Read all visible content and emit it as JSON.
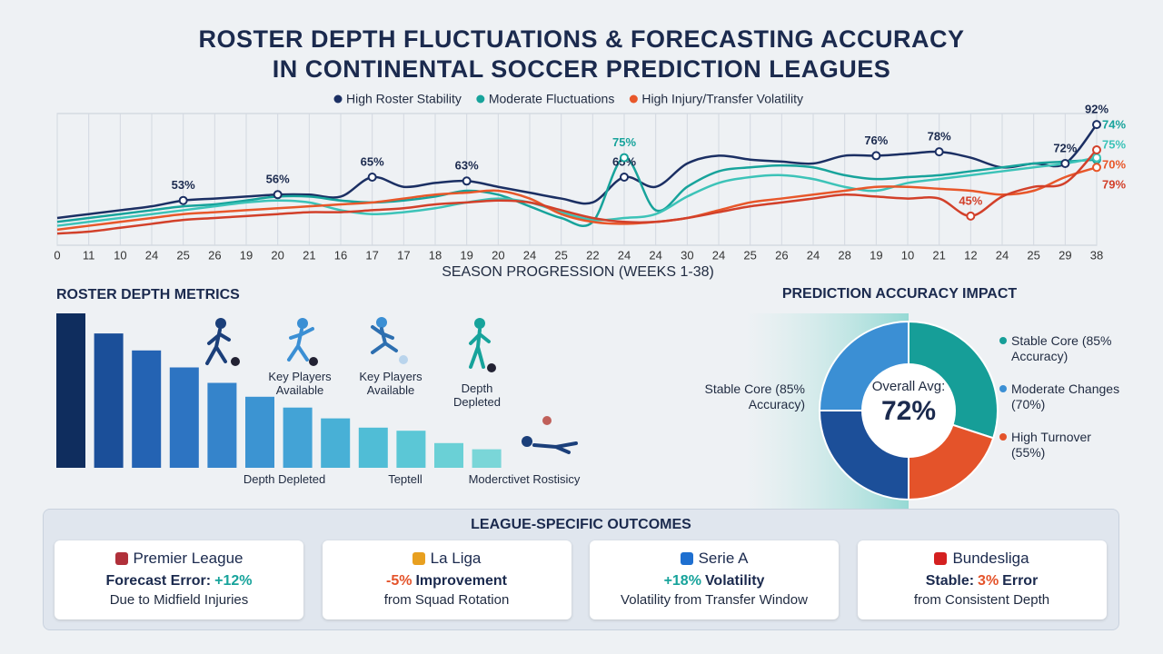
{
  "title": [
    "ROSTER DEPTH FLUCTUATIONS & FORECASTING ACCURACY",
    "IN CONTINENTAL SOCCER PREDICTION LEAGUES"
  ],
  "chart_data": [
    {
      "type": "line",
      "xlabel": "SEASON PROGRESSION (WEEKS 1-38)",
      "grid": true,
      "ylim": [
        30,
        100
      ],
      "categories": [
        "0",
        "11",
        "10",
        "24",
        "25",
        "26",
        "19",
        "20",
        "21",
        "16",
        "17",
        "17",
        "18",
        "19",
        "20",
        "24",
        "25",
        "22",
        "24",
        "24",
        "30",
        "24",
        "25",
        "26",
        "24",
        "28",
        "19",
        "10",
        "21",
        "12",
        "24",
        "25",
        "29",
        "38"
      ],
      "series": [
        {
          "name": "High Roster Stability",
          "color": "#1b2f63",
          "values": [
            44,
            46,
            48,
            50,
            53,
            54,
            55,
            56,
            56,
            55,
            65,
            60,
            62,
            63,
            60,
            57,
            54,
            52,
            65,
            60,
            72,
            76,
            74,
            73,
            72,
            76,
            76,
            77,
            78,
            75,
            70,
            72,
            72,
            92
          ],
          "value_labels": [
            null,
            null,
            null,
            null,
            "53%",
            null,
            null,
            "56%",
            null,
            null,
            "65%",
            null,
            null,
            "63%",
            null,
            null,
            null,
            null,
            "65%",
            null,
            null,
            null,
            null,
            null,
            null,
            null,
            "76%",
            null,
            "78%",
            null,
            null,
            null,
            "72%",
            "92%"
          ]
        },
        {
          "name": "Moderate Fluctuations",
          "color": "#17a39b",
          "values": [
            42,
            44,
            46,
            48,
            50,
            51,
            53,
            55,
            55,
            53,
            52,
            53,
            55,
            58,
            56,
            50,
            44,
            42,
            75,
            48,
            60,
            68,
            70,
            71,
            70,
            66,
            64,
            65,
            66,
            68,
            70,
            72,
            73,
            74
          ],
          "value_labels": [
            null,
            null,
            null,
            null,
            null,
            null,
            null,
            null,
            null,
            null,
            null,
            null,
            null,
            null,
            null,
            null,
            null,
            null,
            "75%",
            null,
            null,
            null,
            null,
            null,
            null,
            null,
            null,
            null,
            null,
            null,
            null,
            null,
            null,
            "74%"
          ]
        },
        {
          "color": "#3cc3b8",
          "values": [
            40,
            42,
            44,
            46,
            48,
            50,
            52,
            53,
            52,
            48,
            46,
            47,
            49,
            52,
            54,
            52,
            47,
            43,
            44,
            46,
            55,
            62,
            65,
            66,
            64,
            60,
            58,
            62,
            64,
            66,
            68,
            70,
            72,
            75
          ],
          "value_labels": [
            null,
            null,
            null,
            null,
            null,
            null,
            null,
            null,
            null,
            null,
            null,
            null,
            null,
            null,
            null,
            null,
            null,
            null,
            null,
            null,
            null,
            null,
            null,
            null,
            null,
            null,
            null,
            null,
            null,
            null,
            null,
            null,
            null,
            "75%"
          ]
        },
        {
          "name": "High Injury/Transfer Volatility",
          "color": "#e8572a",
          "values": [
            38,
            40,
            42,
            44,
            46,
            47,
            48,
            49,
            50,
            51,
            52,
            54,
            56,
            57,
            58,
            54,
            46,
            42,
            41,
            42,
            44,
            48,
            52,
            54,
            56,
            58,
            60,
            60,
            59,
            58,
            56,
            58,
            65,
            70
          ],
          "value_labels": [
            null,
            null,
            null,
            null,
            null,
            null,
            null,
            null,
            null,
            null,
            null,
            null,
            null,
            null,
            null,
            null,
            null,
            null,
            null,
            null,
            null,
            null,
            null,
            null,
            null,
            null,
            null,
            null,
            null,
            null,
            null,
            null,
            null,
            "70%"
          ]
        },
        {
          "color": "#d2402a",
          "values": [
            36,
            37,
            39,
            41,
            43,
            44,
            45,
            46,
            47,
            47,
            48,
            49,
            51,
            52,
            53,
            52,
            48,
            44,
            42,
            42,
            44,
            47,
            50,
            52,
            54,
            56,
            55,
            54,
            54,
            45,
            55,
            60,
            62,
            79
          ],
          "value_labels": [
            null,
            null,
            null,
            null,
            null,
            null,
            null,
            null,
            null,
            null,
            null,
            null,
            null,
            null,
            null,
            null,
            null,
            null,
            null,
            null,
            null,
            null,
            null,
            null,
            null,
            null,
            null,
            null,
            null,
            "45%",
            null,
            null,
            null,
            "79%"
          ]
        }
      ]
    },
    {
      "type": "bar",
      "title": "ROSTER DEPTH METRICS",
      "ylim": [
        0,
        100
      ],
      "values": [
        100,
        87,
        76,
        65,
        55,
        46,
        39,
        32,
        26,
        24,
        16,
        12
      ],
      "colors": [
        "#0f2d5e",
        "#1b4f99",
        "#2463b3",
        "#2d74c2",
        "#3584cb",
        "#3c94d2",
        "#43a3d6",
        "#48b0d6",
        "#50bdd6",
        "#5bc7d6",
        "#6ad0d6",
        "#7ad6d8"
      ],
      "annotations": [
        "Key Players Available",
        "Key Players Available",
        "Depth Depleted",
        "Depth Depleted",
        "Teptell",
        "Moderctivet Rostisicy"
      ]
    },
    {
      "type": "pie",
      "title": "PREDICTION ACCURACY IMPACT",
      "center_label": "Overall Avg:",
      "center_value": "72%",
      "categories": [
        "Stable Core (85% Accuracy)",
        "High Turnover (55%)",
        "Stable Core (85% Accuracy)",
        "Moderate Changes (70%)"
      ],
      "values": [
        30,
        20,
        25,
        25
      ],
      "colors": [
        "#169e98",
        "#e4532a",
        "#1c4f99",
        "#3b8fd4"
      ]
    }
  ],
  "league_outcomes": {
    "title": "LEAGUE-SPECIFIC OUTCOMES",
    "cards": [
      {
        "name": "Premier League",
        "headline": [
          {
            "text": "Forecast Error:"
          },
          {
            "text": "+12%",
            "color": "#17a39b"
          }
        ],
        "detail": "Due to Midfield Injuries"
      },
      {
        "name": "La Liga",
        "headline": [
          {
            "text": "-5%",
            "color": "#e4532a"
          },
          {
            "text": "Improvement"
          }
        ],
        "detail": "from Squad Rotation"
      },
      {
        "name": "Serie A",
        "headline": [
          {
            "text": "+18%",
            "color": "#17a39b"
          },
          {
            "text": "Volatility"
          }
        ],
        "detail": "Volatility from Transfer Window"
      },
      {
        "name": "Bundesliga",
        "headline": [
          {
            "text": "Stable:"
          },
          {
            "text": "3%",
            "color": "#e4532a"
          },
          {
            "text": "Error"
          }
        ],
        "detail": "from Consistent Depth"
      }
    ]
  }
}
